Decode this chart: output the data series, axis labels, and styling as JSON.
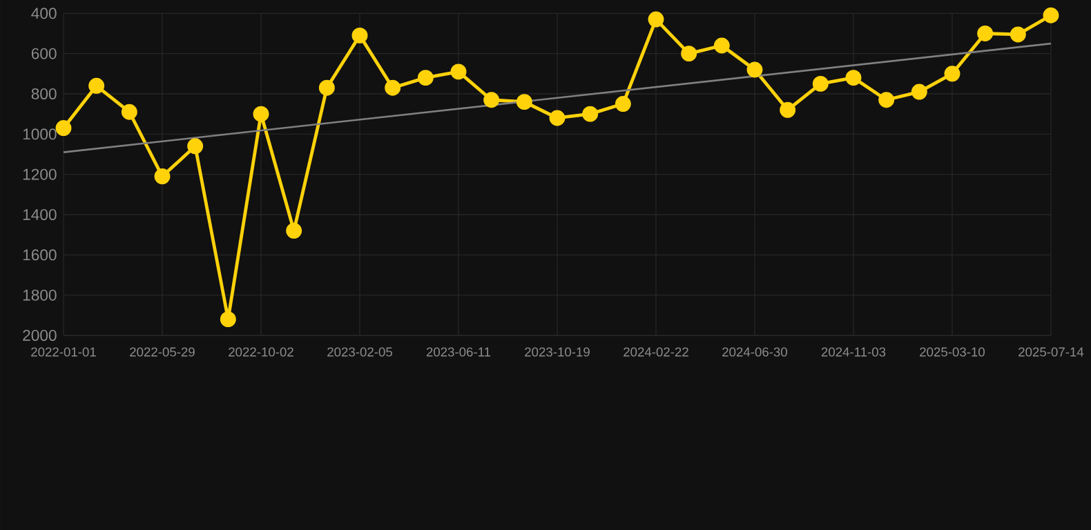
{
  "chart_data": {
    "type": "line",
    "categories": [
      "2022-01-01",
      null,
      null,
      "2022-05-29",
      null,
      null,
      "2022-10-02",
      null,
      null,
      "2023-02-05",
      null,
      null,
      "2023-06-11",
      null,
      null,
      "2023-10-19",
      null,
      null,
      "2024-02-22",
      null,
      null,
      "2024-06-30",
      null,
      null,
      "2024-11-03",
      null,
      null,
      "2025-03-10",
      null,
      null,
      "2025-07-14"
    ],
    "series": [
      {
        "color": "#ffd20a",
        "values": [
          970,
          760,
          890,
          1210,
          1060,
          1920,
          900,
          1480,
          770,
          510,
          770,
          720,
          690,
          830,
          840,
          920,
          900,
          850,
          430,
          600,
          560,
          680,
          880,
          750,
          720,
          830,
          790,
          700,
          500,
          505,
          410
        ]
      },
      {
        "type": "line",
        "color": "#808080",
        "marker": "none",
        "values": [
          1090,
          null,
          null,
          null,
          null,
          null,
          null,
          null,
          null,
          null,
          null,
          null,
          null,
          null,
          null,
          null,
          null,
          null,
          null,
          null,
          null,
          null,
          null,
          null,
          null,
          null,
          null,
          null,
          null,
          null,
          550
        ]
      }
    ],
    "ylim": [
      2000,
      400
    ],
    "yticks": [
      400,
      600,
      800,
      1000,
      1200,
      1400,
      1600,
      1800,
      2000
    ],
    "grid": true,
    "marker": "circle",
    "line_style": "solid"
  }
}
